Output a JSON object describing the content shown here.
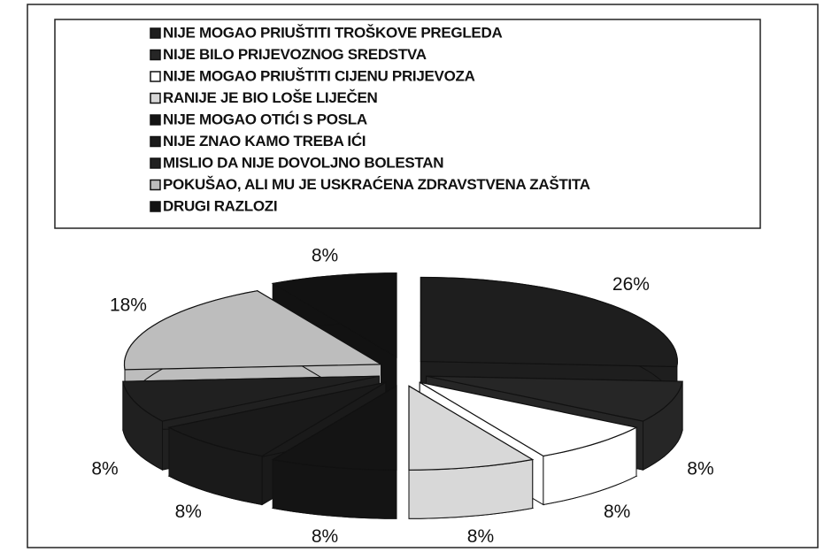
{
  "chart_data": {
    "type": "pie",
    "categories": [
      "NIJE MOGAO PRIUŠTITI TROŠKOVE PREGLEDA",
      "NIJE BILO PRIJEVOZNOG SREDSTVA",
      "NIJE MOGAO PRIUŠTITI CIJENU PRIJEVOZA",
      "RANIJE JE BIO LOŠE LIJEČEN",
      "NIJE MOGAO OTIĆI S POSLA",
      "NIJE ZNAO KAMO TREBA IĆI",
      "MISLIO DA NIJE DOVOLJNO BOLESTAN",
      "POKUŠAO, ALI MU JE USKRAĆENA ZDRAVSTVENA ZAŠTITA",
      "DRUGI RAZLOZI"
    ],
    "values": [
      26,
      8,
      8,
      8,
      8,
      8,
      8,
      18,
      8
    ],
    "value_labels": [
      "26%",
      "8%",
      "8%",
      "8%",
      "8%",
      "8%",
      "8%",
      "18%",
      "8%"
    ],
    "colors": [
      "#1e1e1e",
      "#262626",
      "#ffffff",
      "#d8d8d8",
      "#141414",
      "#1a1a1a",
      "#202020",
      "#bdbdbd",
      "#121212"
    ],
    "legend": "top"
  }
}
